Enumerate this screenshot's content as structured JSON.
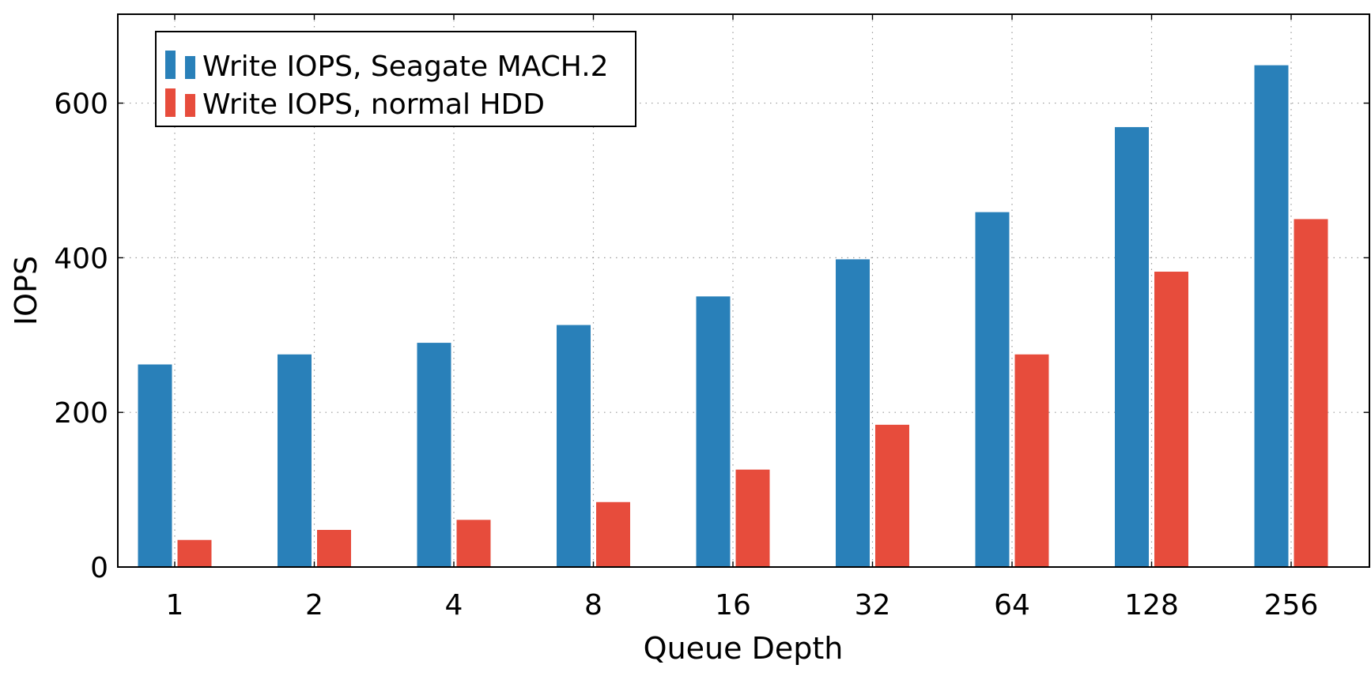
{
  "chart_data": {
    "type": "bar",
    "categories": [
      "1",
      "2",
      "4",
      "8",
      "16",
      "32",
      "64",
      "128",
      "256"
    ],
    "series": [
      {
        "name": "Write IOPS, Seagate MACH.2",
        "color": "#2980b9",
        "values": [
          262,
          275,
          290,
          313,
          350,
          398,
          459,
          569,
          649
        ]
      },
      {
        "name": "Write IOPS, normal HDD",
        "color": "#e74c3c",
        "values": [
          35,
          48,
          61,
          84,
          126,
          184,
          275,
          382,
          450
        ]
      }
    ],
    "xlabel": "Queue Depth",
    "ylabel": "IOPS",
    "ylim": [
      0,
      715
    ],
    "yticks": [
      0,
      200,
      400,
      600
    ],
    "grid": true,
    "legend_position": "top-left"
  }
}
